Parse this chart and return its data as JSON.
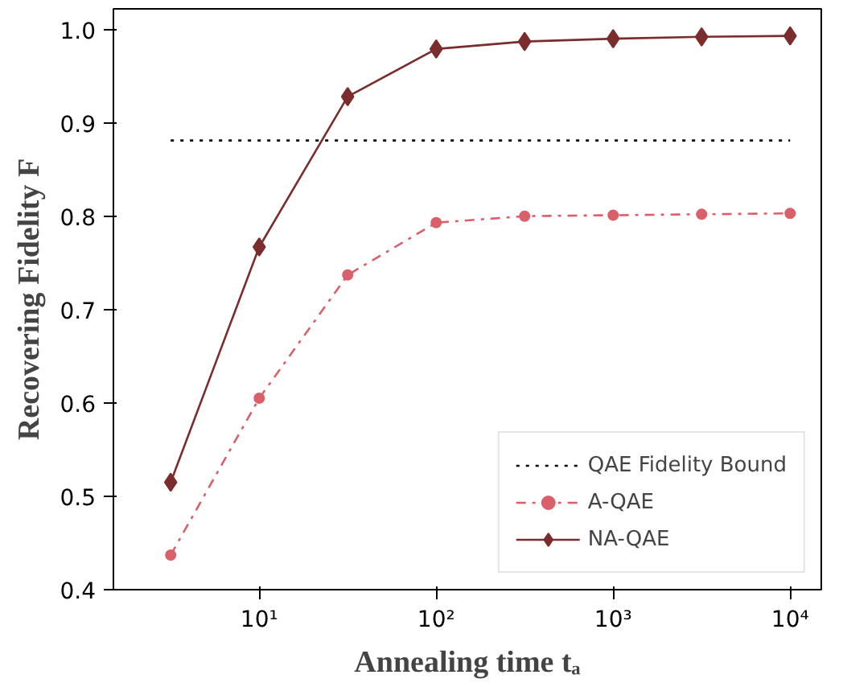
{
  "chart_data": {
    "type": "line",
    "xlabel": "Annealing time tₐ",
    "ylabel": "Recovering Fidelity F",
    "log": "x",
    "xlim": [
      1.5,
      15000
    ],
    "ylim": [
      0.4,
      1.022
    ],
    "xticks": [
      {
        "value": 10,
        "label": "10¹"
      },
      {
        "value": 100,
        "label": "10²"
      },
      {
        "value": 1000,
        "label": "10³"
      },
      {
        "value": 10000,
        "label": "10⁴"
      }
    ],
    "yticks": [
      0.4,
      0.5,
      0.6,
      0.7,
      0.8,
      0.9,
      {
        "value": 1.0,
        "label": "1.0"
      }
    ],
    "grid": false,
    "legend": "bottom right",
    "series": [
      {
        "name": "QAE Fidelity Bound",
        "color": "#000000",
        "line_style": "dotted",
        "marker": "none",
        "x": [
          3.16,
          10000
        ],
        "values": [
          0.881,
          0.881
        ]
      },
      {
        "name": "A-QAE",
        "color": "#d9606a",
        "line_style": "dashdot",
        "marker": "circle",
        "x": [
          3.16,
          10,
          31.6,
          100,
          316,
          1000,
          3162,
          10000
        ],
        "values": [
          0.437,
          0.605,
          0.737,
          0.793,
          0.8,
          0.801,
          0.802,
          0.803
        ]
      },
      {
        "name": "NA-QAE",
        "color": "#7b2c2c",
        "line_style": "solid",
        "marker": "diamond",
        "x": [
          3.16,
          10,
          31.6,
          100,
          316,
          1000,
          3162,
          10000
        ],
        "values": [
          0.515,
          0.767,
          0.928,
          0.979,
          0.987,
          0.99,
          0.992,
          0.993
        ]
      }
    ]
  }
}
